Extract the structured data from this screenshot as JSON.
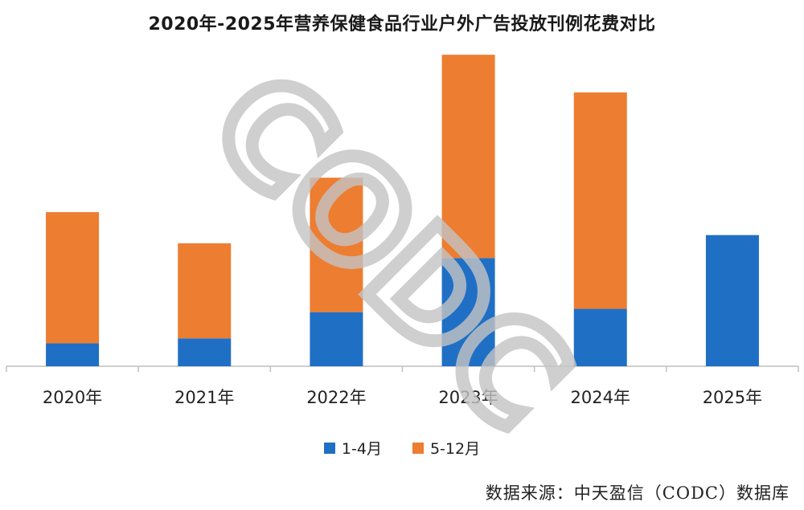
{
  "title": "2020年-2025年营养保健食品行业户外广告投放刊例花费对比",
  "source": "数据来源：中天盈信（CODC）数据库",
  "watermark_text": "CODC",
  "colors": {
    "series1": "#1f6fc5",
    "series2": "#ed7d31",
    "axis": "#bfbfbf",
    "watermark": "#c4c4c4"
  },
  "chart_data": {
    "type": "bar",
    "stacked": true,
    "categories": [
      "2020年",
      "2021年",
      "2022年",
      "2023年",
      "2024年",
      "2025年"
    ],
    "series": [
      {
        "name": "1-4月",
        "values": [
          7,
          8.5,
          16.5,
          33,
          17.5,
          40
        ]
      },
      {
        "name": "5-12月",
        "values": [
          40,
          29,
          41,
          62,
          66,
          0
        ]
      }
    ],
    "ylim": [
      0,
      97
    ],
    "grid": false,
    "legend_position": "bottom"
  }
}
